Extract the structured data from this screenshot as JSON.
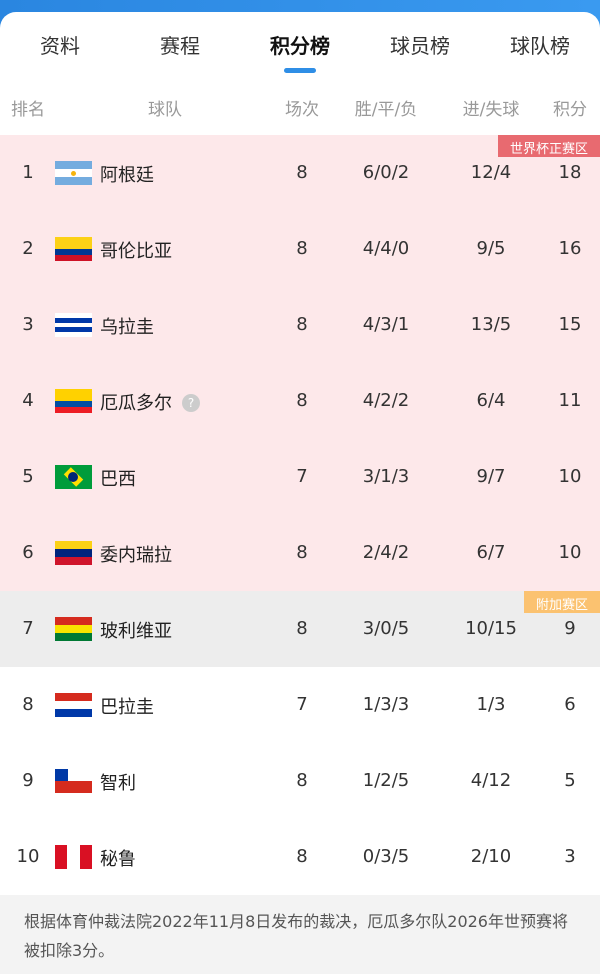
{
  "tabs": [
    {
      "label": "资料"
    },
    {
      "label": "赛程"
    },
    {
      "label": "积分榜",
      "active": true
    },
    {
      "label": "球员榜"
    },
    {
      "label": "球队榜"
    }
  ],
  "columns": {
    "rank": "排名",
    "team": "球队",
    "played": "场次",
    "wdl": "胜/平/负",
    "goals": "进/失球",
    "points": "积分"
  },
  "zones": {
    "qualify": {
      "label": "世界杯正赛区",
      "color": "#e86a70"
    },
    "playoff": {
      "label": "附加赛区",
      "color": "#fbc270"
    }
  },
  "rows": [
    {
      "rank": "1",
      "team": "阿根廷",
      "flag": "argentina",
      "played": "8",
      "wdl": "6/0/2",
      "goals": "12/4",
      "points": "18",
      "zone": "qualify"
    },
    {
      "rank": "2",
      "team": "哥伦比亚",
      "flag": "colombia",
      "played": "8",
      "wdl": "4/4/0",
      "goals": "9/5",
      "points": "16",
      "zone": "qualify"
    },
    {
      "rank": "3",
      "team": "乌拉圭",
      "flag": "uruguay",
      "played": "8",
      "wdl": "4/3/1",
      "goals": "13/5",
      "points": "15",
      "zone": "qualify"
    },
    {
      "rank": "4",
      "team": "厄瓜多尔",
      "flag": "ecuador",
      "played": "8",
      "wdl": "4/2/2",
      "goals": "6/4",
      "points": "11",
      "zone": "qualify",
      "help": "?"
    },
    {
      "rank": "5",
      "team": "巴西",
      "flag": "brazil",
      "played": "7",
      "wdl": "3/1/3",
      "goals": "9/7",
      "points": "10",
      "zone": "qualify"
    },
    {
      "rank": "6",
      "team": "委内瑞拉",
      "flag": "venezuela",
      "played": "8",
      "wdl": "2/4/2",
      "goals": "6/7",
      "points": "10",
      "zone": "qualify"
    },
    {
      "rank": "7",
      "team": "玻利维亚",
      "flag": "bolivia",
      "played": "8",
      "wdl": "3/0/5",
      "goals": "10/15",
      "points": "9",
      "zone": "playoff"
    },
    {
      "rank": "8",
      "team": "巴拉圭",
      "flag": "paraguay",
      "played": "7",
      "wdl": "1/3/3",
      "goals": "1/3",
      "points": "6"
    },
    {
      "rank": "9",
      "team": "智利",
      "flag": "chile",
      "played": "8",
      "wdl": "1/2/5",
      "goals": "4/12",
      "points": "5"
    },
    {
      "rank": "10",
      "team": "秘鲁",
      "flag": "peru",
      "played": "8",
      "wdl": "0/3/5",
      "goals": "2/10",
      "points": "3"
    }
  ],
  "footer": "根据体育仲裁法院2022年11月8日发布的裁决，厄瓜多尔队2026年世预赛将被扣除3分。"
}
